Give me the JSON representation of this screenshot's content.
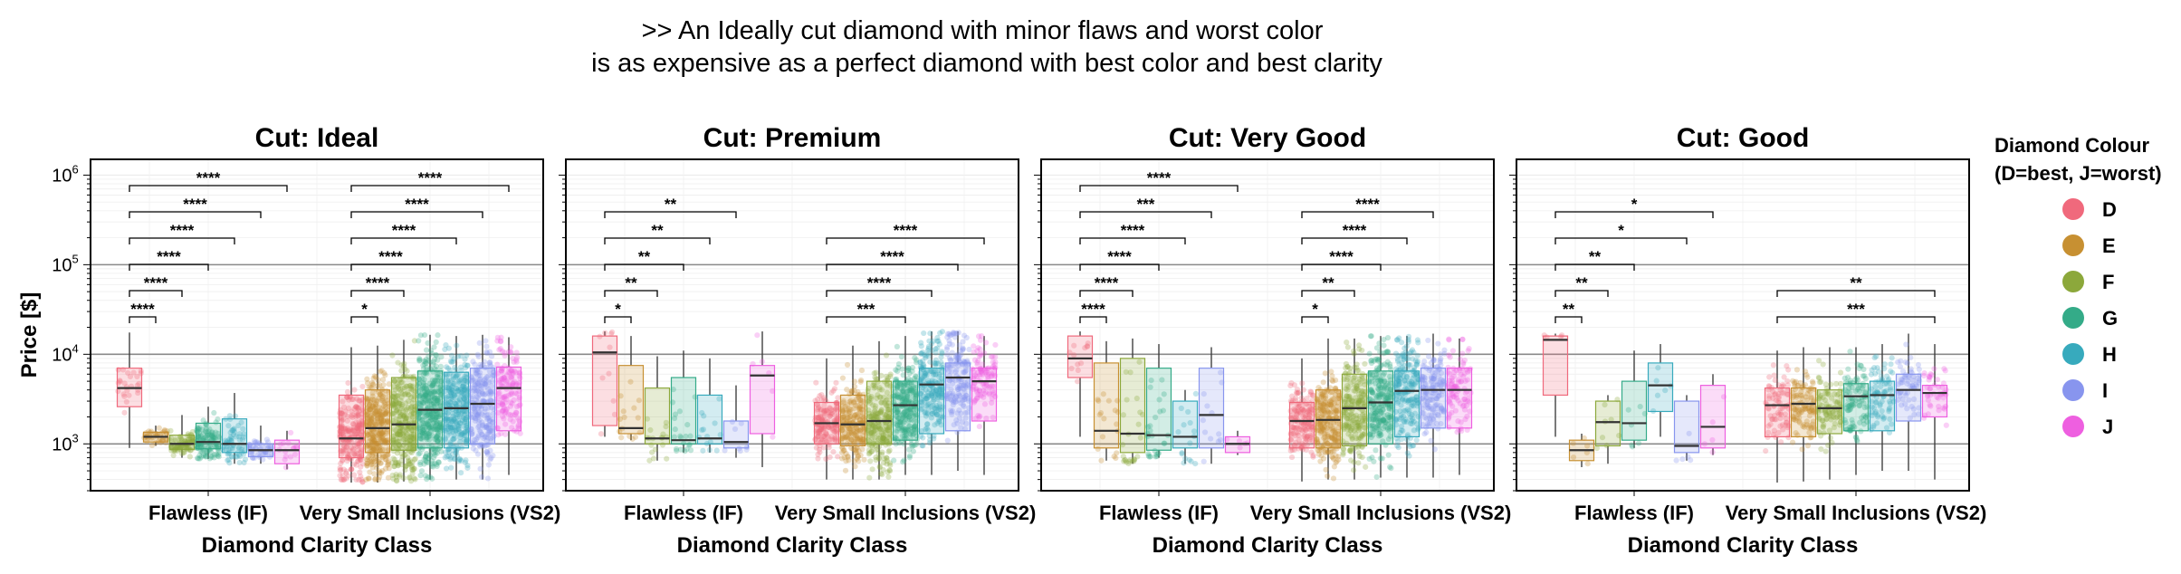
{
  "heading": {
    "line1": ">> An Ideally cut diamond with minor flaws and worst color",
    "line2": "is as expensive as a perfect diamond with best color and best clarity"
  },
  "chart_data": {
    "type": "boxplot",
    "y_axis": {
      "label": "Price [$]",
      "scale": "log10",
      "ylim": [
        300,
        1500000
      ],
      "ticks": [
        1000,
        10000,
        100000,
        1000000
      ],
      "tick_labels": [
        {
          "base": "10",
          "exp": "3"
        },
        {
          "base": "10",
          "exp": "4"
        },
        {
          "base": "10",
          "exp": "5"
        },
        {
          "base": "10",
          "exp": "6"
        }
      ],
      "reference_lines": [
        1000,
        10000,
        100000
      ]
    },
    "x_axis": {
      "label": "Diamond Clarity Class",
      "categories": [
        "Flawless (IF)",
        "Very Small Inclusions (VS2)"
      ]
    },
    "legend": {
      "title_line1": "Diamond Colour",
      "title_line2": "(D=best, J=worst)",
      "placement": "right",
      "items": [
        {
          "label": "D",
          "color": "#f0697c"
        },
        {
          "label": "E",
          "color": "#c79032"
        },
        {
          "label": "F",
          "color": "#8ca83b"
        },
        {
          "label": "G",
          "color": "#34ab88"
        },
        {
          "label": "H",
          "color": "#37aabd"
        },
        {
          "label": "I",
          "color": "#8895ee"
        },
        {
          "label": "J",
          "color": "#ee5fe0"
        }
      ]
    },
    "panels": [
      {
        "title": "Cut: Ideal",
        "groups": [
          {
            "clarity": "Flawless (IF)",
            "boxes": [
              {
                "color": "D",
                "whislo": 900,
                "q1": 2600,
                "med": 4200,
                "q3": 7000,
                "whishi": 17500,
                "n": 25
              },
              {
                "color": "E",
                "whislo": 950,
                "q1": 1050,
                "med": 1200,
                "q3": 1350,
                "whishi": 1600,
                "n": 40
              },
              {
                "color": "F",
                "whislo": 700,
                "q1": 870,
                "med": 1000,
                "q3": 1250,
                "whishi": 2100,
                "n": 85
              },
              {
                "color": "G",
                "whislo": 680,
                "q1": 880,
                "med": 1050,
                "q3": 1700,
                "whishi": 2600,
                "n": 120
              },
              {
                "color": "H",
                "whislo": 600,
                "q1": 800,
                "med": 1000,
                "q3": 1900,
                "whishi": 3700,
                "n": 65
              },
              {
                "color": "I",
                "whislo": 600,
                "q1": 720,
                "med": 850,
                "q3": 1000,
                "whishi": 1600,
                "n": 45
              },
              {
                "color": "J",
                "whislo": 520,
                "q1": 600,
                "med": 850,
                "q3": 1100,
                "whishi": 1400,
                "n": 15
              }
            ]
          },
          {
            "clarity": "Very Small Inclusions (VS2)",
            "boxes": [
              {
                "color": "D",
                "whislo": 370,
                "q1": 700,
                "med": 1150,
                "q3": 3500,
                "whishi": 12000,
                "n": 230
              },
              {
                "color": "E",
                "whislo": 370,
                "q1": 800,
                "med": 1500,
                "q3": 4000,
                "whishi": 12500,
                "n": 320
              },
              {
                "color": "F",
                "whislo": 380,
                "q1": 850,
                "med": 1650,
                "q3": 5500,
                "whishi": 14500,
                "n": 300
              },
              {
                "color": "G",
                "whislo": 400,
                "q1": 900,
                "med": 2400,
                "q3": 6500,
                "whishi": 16500,
                "n": 360
              },
              {
                "color": "H",
                "whislo": 400,
                "q1": 900,
                "med": 2500,
                "q3": 6300,
                "whishi": 16000,
                "n": 290
              },
              {
                "color": "I",
                "whislo": 400,
                "q1": 1000,
                "med": 2800,
                "q3": 7000,
                "whishi": 16500,
                "n": 230
              },
              {
                "color": "J",
                "whislo": 450,
                "q1": 1400,
                "med": 4200,
                "q3": 7200,
                "whishi": 15500,
                "n": 140
              }
            ]
          }
        ],
        "comparisons": [
          {
            "group": 0,
            "to": 1,
            "label": "****"
          },
          {
            "group": 0,
            "to": 2,
            "label": "****"
          },
          {
            "group": 0,
            "to": 3,
            "label": "****"
          },
          {
            "group": 0,
            "to": 4,
            "label": "****"
          },
          {
            "group": 0,
            "to": 5,
            "label": "****"
          },
          {
            "group": 0,
            "to": 6,
            "label": "****"
          },
          {
            "group": 1,
            "to": 1,
            "label": "*"
          },
          {
            "group": 1,
            "to": 2,
            "label": "****"
          },
          {
            "group": 1,
            "to": 3,
            "label": "****"
          },
          {
            "group": 1,
            "to": 4,
            "label": "****"
          },
          {
            "group": 1,
            "to": 5,
            "label": "****"
          },
          {
            "group": 1,
            "to": 6,
            "label": "****"
          }
        ]
      },
      {
        "title": "Cut: Premium",
        "groups": [
          {
            "clarity": "Flawless (IF)",
            "boxes": [
              {
                "color": "D",
                "whislo": 1200,
                "q1": 1600,
                "med": 10500,
                "q3": 16000,
                "whishi": 18000,
                "n": 10
              },
              {
                "color": "E",
                "whislo": 1100,
                "q1": 1300,
                "med": 1500,
                "q3": 7500,
                "whishi": 16000,
                "n": 15
              },
              {
                "color": "F",
                "whislo": 650,
                "q1": 1000,
                "med": 1150,
                "q3": 4200,
                "whishi": 9500,
                "n": 18
              },
              {
                "color": "G",
                "whislo": 800,
                "q1": 1000,
                "med": 1100,
                "q3": 5500,
                "whishi": 11000,
                "n": 22
              },
              {
                "color": "H",
                "whislo": 800,
                "q1": 1000,
                "med": 1150,
                "q3": 3500,
                "whishi": 9000,
                "n": 14
              },
              {
                "color": "I",
                "whislo": 700,
                "q1": 900,
                "med": 1050,
                "q3": 1800,
                "whishi": 4500,
                "n": 8
              },
              {
                "color": "J",
                "whislo": 550,
                "q1": 1300,
                "med": 5800,
                "q3": 7500,
                "whishi": 18000,
                "n": 6
              }
            ]
          },
          {
            "clarity": "Very Small Inclusions (VS2)",
            "boxes": [
              {
                "color": "D",
                "whislo": 400,
                "q1": 1000,
                "med": 1700,
                "q3": 2900,
                "whishi": 9000,
                "n": 170
              },
              {
                "color": "E",
                "whislo": 400,
                "q1": 950,
                "med": 1650,
                "q3": 3500,
                "whishi": 12500,
                "n": 210
              },
              {
                "color": "F",
                "whislo": 400,
                "q1": 1000,
                "med": 1800,
                "q3": 5000,
                "whishi": 14000,
                "n": 230
              },
              {
                "color": "G",
                "whislo": 450,
                "q1": 1100,
                "med": 2700,
                "q3": 5000,
                "whishi": 16000,
                "n": 260
              },
              {
                "color": "H",
                "whislo": 450,
                "q1": 1300,
                "med": 4600,
                "q3": 7000,
                "whishi": 18000,
                "n": 210
              },
              {
                "color": "I",
                "whislo": 500,
                "q1": 1400,
                "med": 5500,
                "q3": 8000,
                "whishi": 18000,
                "n": 160
              },
              {
                "color": "J",
                "whislo": 450,
                "q1": 1800,
                "med": 5000,
                "q3": 7000,
                "whishi": 16000,
                "n": 110
              }
            ]
          }
        ],
        "comparisons": [
          {
            "group": 0,
            "to": 1,
            "label": "*"
          },
          {
            "group": 0,
            "to": 2,
            "label": "**"
          },
          {
            "group": 0,
            "to": 3,
            "label": "**"
          },
          {
            "group": 0,
            "to": 4,
            "label": "**"
          },
          {
            "group": 0,
            "to": 5,
            "label": "**"
          },
          {
            "group": 1,
            "to": 3,
            "label": "***"
          },
          {
            "group": 1,
            "to": 4,
            "label": "****"
          },
          {
            "group": 1,
            "to": 5,
            "label": "****"
          },
          {
            "group": 1,
            "to": 6,
            "label": "****"
          }
        ]
      },
      {
        "title": "Cut: Very Good",
        "groups": [
          {
            "clarity": "Flawless (IF)",
            "boxes": [
              {
                "color": "D",
                "whislo": 1200,
                "q1": 5500,
                "med": 9000,
                "q3": 16000,
                "whishi": 18000,
                "n": 12
              },
              {
                "color": "E",
                "whislo": 650,
                "q1": 900,
                "med": 1400,
                "q3": 8000,
                "whishi": 14000,
                "n": 18
              },
              {
                "color": "F",
                "whislo": 600,
                "q1": 800,
                "med": 1300,
                "q3": 9000,
                "whishi": 15000,
                "n": 25
              },
              {
                "color": "G",
                "whislo": 700,
                "q1": 850,
                "med": 1250,
                "q3": 7000,
                "whishi": 13000,
                "n": 28
              },
              {
                "color": "H",
                "whislo": 600,
                "q1": 900,
                "med": 1200,
                "q3": 3000,
                "whishi": 4000,
                "n": 16
              },
              {
                "color": "I",
                "whislo": 600,
                "q1": 900,
                "med": 2100,
                "q3": 7000,
                "whishi": 12000,
                "n": 12
              },
              {
                "color": "J",
                "whislo": 750,
                "q1": 800,
                "med": 1000,
                "q3": 1200,
                "whishi": 1400,
                "n": 5
              }
            ]
          },
          {
            "clarity": "Very Small Inclusions (VS2)",
            "boxes": [
              {
                "color": "D",
                "whislo": 380,
                "q1": 900,
                "med": 1800,
                "q3": 2900,
                "whishi": 9000,
                "n": 160
              },
              {
                "color": "E",
                "whislo": 400,
                "q1": 900,
                "med": 1850,
                "q3": 4000,
                "whishi": 15000,
                "n": 230
              },
              {
                "color": "F",
                "whislo": 400,
                "q1": 950,
                "med": 2500,
                "q3": 6000,
                "whishi": 15000,
                "n": 210
              },
              {
                "color": "G",
                "whislo": 420,
                "q1": 1000,
                "med": 2900,
                "q3": 6500,
                "whishi": 16000,
                "n": 240
              },
              {
                "color": "H",
                "whislo": 420,
                "q1": 1200,
                "med": 3900,
                "q3": 6500,
                "whishi": 16000,
                "n": 200
              },
              {
                "color": "I",
                "whislo": 420,
                "q1": 1500,
                "med": 4000,
                "q3": 7000,
                "whishi": 17000,
                "n": 150
              },
              {
                "color": "J",
                "whislo": 450,
                "q1": 1500,
                "med": 4000,
                "q3": 7000,
                "whishi": 15000,
                "n": 100
              }
            ]
          }
        ],
        "comparisons": [
          {
            "group": 0,
            "to": 1,
            "label": "****"
          },
          {
            "group": 0,
            "to": 2,
            "label": "****"
          },
          {
            "group": 0,
            "to": 3,
            "label": "****"
          },
          {
            "group": 0,
            "to": 4,
            "label": "****"
          },
          {
            "group": 0,
            "to": 5,
            "label": "***"
          },
          {
            "group": 0,
            "to": 6,
            "label": "****"
          },
          {
            "group": 1,
            "to": 1,
            "label": "*"
          },
          {
            "group": 1,
            "to": 2,
            "label": "**"
          },
          {
            "group": 1,
            "to": 3,
            "label": "****"
          },
          {
            "group": 1,
            "to": 4,
            "label": "****"
          },
          {
            "group": 1,
            "to": 5,
            "label": "****"
          }
        ]
      },
      {
        "title": "Cut: Good",
        "groups": [
          {
            "clarity": "Flawless (IF)",
            "boxes": [
              {
                "color": "D",
                "whislo": 1200,
                "q1": 3500,
                "med": 14500,
                "q3": 16000,
                "whishi": 17000,
                "n": 4
              },
              {
                "color": "E",
                "whislo": 550,
                "q1": 650,
                "med": 850,
                "q3": 1100,
                "whishi": 1300,
                "n": 6
              },
              {
                "color": "F",
                "whislo": 600,
                "q1": 950,
                "med": 1750,
                "q3": 3000,
                "whishi": 3500,
                "n": 8
              },
              {
                "color": "G",
                "whislo": 900,
                "q1": 1100,
                "med": 1700,
                "q3": 5000,
                "whishi": 11000,
                "n": 7
              },
              {
                "color": "H",
                "whislo": 1200,
                "q1": 2300,
                "med": 4500,
                "q3": 8000,
                "whishi": 13000,
                "n": 6
              },
              {
                "color": "I",
                "whislo": 650,
                "q1": 800,
                "med": 950,
                "q3": 3000,
                "whishi": 3500,
                "n": 5
              },
              {
                "color": "J",
                "whislo": 750,
                "q1": 900,
                "med": 1550,
                "q3": 4500,
                "whishi": 6000,
                "n": 5
              }
            ]
          },
          {
            "clarity": "Very Small Inclusions (VS2)",
            "boxes": [
              {
                "color": "D",
                "whislo": 370,
                "q1": 1200,
                "med": 2700,
                "q3": 4200,
                "whishi": 11000,
                "n": 80
              },
              {
                "color": "E",
                "whislo": 380,
                "q1": 1200,
                "med": 2800,
                "q3": 4200,
                "whishi": 12000,
                "n": 110
              },
              {
                "color": "F",
                "whislo": 400,
                "q1": 1300,
                "med": 2500,
                "q3": 4000,
                "whishi": 12000,
                "n": 100
              },
              {
                "color": "G",
                "whislo": 450,
                "q1": 1400,
                "med": 3400,
                "q3": 4700,
                "whishi": 12000,
                "n": 100
              },
              {
                "color": "H",
                "whislo": 500,
                "q1": 1400,
                "med": 3500,
                "q3": 5000,
                "whishi": 13000,
                "n": 80
              },
              {
                "color": "I",
                "whislo": 500,
                "q1": 1800,
                "med": 4000,
                "q3": 6000,
                "whishi": 17000,
                "n": 60
              },
              {
                "color": "J",
                "whislo": 400,
                "q1": 2000,
                "med": 3700,
                "q3": 4500,
                "whishi": 13000,
                "n": 45
              }
            ]
          }
        ],
        "comparisons": [
          {
            "group": 0,
            "to": 1,
            "label": "**"
          },
          {
            "group": 0,
            "to": 2,
            "label": "**"
          },
          {
            "group": 0,
            "to": 3,
            "label": "**"
          },
          {
            "group": 0,
            "to": 5,
            "label": "*"
          },
          {
            "group": 0,
            "to": 6,
            "label": "*"
          },
          {
            "group": 1,
            "to": 6,
            "label": "***"
          },
          {
            "group": 1,
            "to": 6,
            "label": "**"
          }
        ]
      }
    ]
  }
}
